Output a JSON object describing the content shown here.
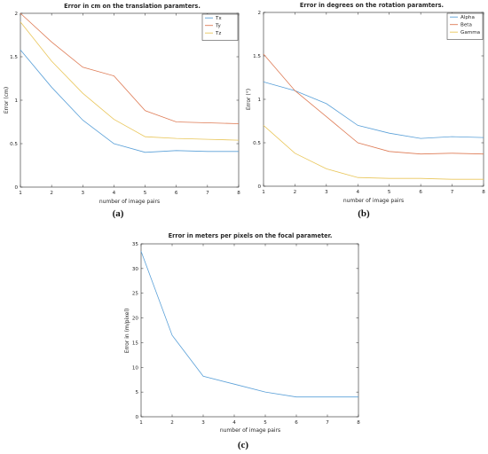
{
  "chart_data": [
    {
      "type": "line",
      "panel_label": "(a)",
      "title": "Error in cm on the translation paramters.",
      "xlabel": "number of image pairs",
      "ylabel": "Error (cm)",
      "xlim": [
        1,
        8
      ],
      "ylim": [
        0,
        2
      ],
      "xticks": [
        "1",
        "2",
        "3",
        "4",
        "5",
        "6",
        "7",
        "8"
      ],
      "yticks": [
        "0",
        "0.5",
        "1",
        "1.5",
        "2"
      ],
      "legend": "top-right",
      "x": [
        1,
        2,
        3,
        4,
        5,
        6,
        7,
        8
      ],
      "series": [
        {
          "name": "Tx",
          "color": "#5aa0d8",
          "values": [
            1.58,
            1.15,
            0.77,
            0.5,
            0.4,
            0.42,
            0.41,
            0.41
          ]
        },
        {
          "name": "Ty",
          "color": "#de7b55",
          "values": [
            2.0,
            1.67,
            1.38,
            1.28,
            0.88,
            0.75,
            0.74,
            0.73
          ]
        },
        {
          "name": "Tz",
          "color": "#e9c65a",
          "values": [
            1.9,
            1.45,
            1.08,
            0.78,
            0.58,
            0.56,
            0.55,
            0.54
          ]
        }
      ]
    },
    {
      "type": "line",
      "panel_label": "(b)",
      "title": "Error in degrees on the rotation paramters.",
      "xlabel": "number of image pairs",
      "ylabel": "Error (°)",
      "xlim": [
        1,
        8
      ],
      "ylim": [
        0,
        2
      ],
      "xticks": [
        "1",
        "2",
        "3",
        "4",
        "5",
        "6",
        "7",
        "8"
      ],
      "yticks": [
        "0",
        "0.5",
        "1",
        "1.5",
        "2"
      ],
      "legend": "top-right",
      "x": [
        1,
        2,
        3,
        4,
        5,
        6,
        7,
        8
      ],
      "series": [
        {
          "name": "Alpha",
          "color": "#5aa0d8",
          "values": [
            1.2,
            1.1,
            0.95,
            0.7,
            0.61,
            0.55,
            0.57,
            0.56
          ]
        },
        {
          "name": "Beta",
          "color": "#de7b55",
          "values": [
            1.52,
            1.1,
            0.8,
            0.5,
            0.4,
            0.37,
            0.38,
            0.37
          ]
        },
        {
          "name": "Gamma",
          "color": "#e9c65a",
          "values": [
            0.7,
            0.38,
            0.2,
            0.1,
            0.09,
            0.09,
            0.08,
            0.08
          ]
        }
      ]
    },
    {
      "type": "line",
      "panel_label": "(c)",
      "title": "Error in meters per pixels on the focal parameter.",
      "xlabel": "number of image pairs",
      "ylabel": "Error in (m/pixel)",
      "xlim": [
        1,
        8
      ],
      "ylim": [
        0,
        35
      ],
      "xticks": [
        "1",
        "2",
        "3",
        "4",
        "5",
        "6",
        "7",
        "8"
      ],
      "yticks": [
        "0",
        "5",
        "10",
        "15",
        "20",
        "25",
        "30",
        "35"
      ],
      "x": [
        1,
        2,
        3,
        4,
        5,
        6,
        7,
        8
      ],
      "series": [
        {
          "color": "#5aa0d8",
          "values": [
            33.5,
            16.5,
            8.2,
            6.6,
            5.0,
            4.0,
            4.0,
            4.0
          ]
        }
      ]
    }
  ]
}
